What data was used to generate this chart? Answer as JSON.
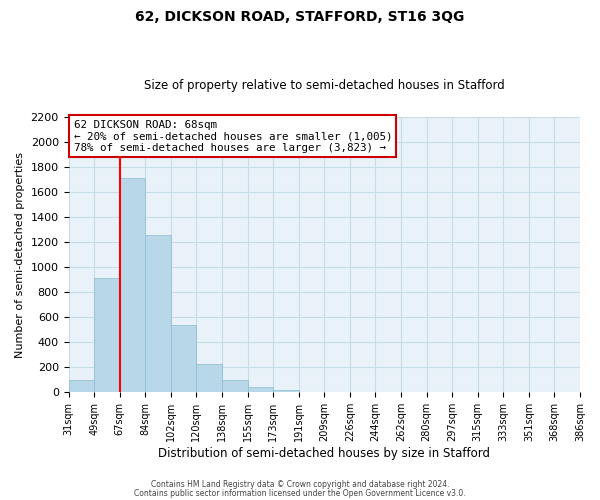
{
  "title": "62, DICKSON ROAD, STAFFORD, ST16 3QG",
  "subtitle": "Size of property relative to semi-detached houses in Stafford",
  "xlabel": "Distribution of semi-detached houses by size in Stafford",
  "ylabel": "Number of semi-detached properties",
  "bin_labels": [
    "31sqm",
    "49sqm",
    "67sqm",
    "84sqm",
    "102sqm",
    "120sqm",
    "138sqm",
    "155sqm",
    "173sqm",
    "191sqm",
    "209sqm",
    "226sqm",
    "244sqm",
    "262sqm",
    "280sqm",
    "297sqm",
    "315sqm",
    "333sqm",
    "351sqm",
    "368sqm",
    "386sqm"
  ],
  "bar_values": [
    95,
    910,
    1710,
    1255,
    540,
    230,
    100,
    40,
    20,
    0,
    0,
    0,
    0,
    0,
    0,
    0,
    0,
    0,
    0,
    0
  ],
  "bar_color": "#b8d8ea",
  "bar_edge_color": "#8bbcce",
  "property_line_bin_index": 2,
  "ylim": [
    0,
    2200
  ],
  "yticks": [
    0,
    200,
    400,
    600,
    800,
    1000,
    1200,
    1400,
    1600,
    1800,
    2000,
    2200
  ],
  "annotation_title": "62 DICKSON ROAD: 68sqm",
  "annotation_line1": "← 20% of semi-detached houses are smaller (1,005)",
  "annotation_line2": "78% of semi-detached houses are larger (3,823) →",
  "annotation_box_color": "#ffffff",
  "annotation_box_edge": "#cc0000",
  "footer_line1": "Contains HM Land Registry data © Crown copyright and database right 2024.",
  "footer_line2": "Contains public sector information licensed under the Open Government Licence v3.0.",
  "grid_color": "#c8dce8",
  "background_color": "#e8f2f8"
}
